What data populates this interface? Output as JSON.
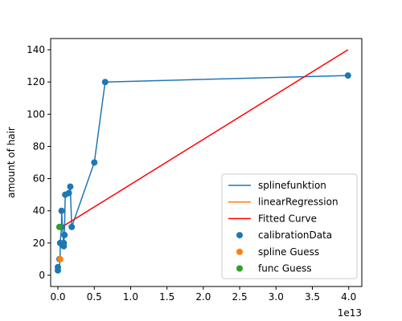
{
  "chart_data": {
    "type": "scatter",
    "ylabel": "amount of hair",
    "x_offset_label": "1e13",
    "x_multiplier": 10000000000000,
    "xlim": [
      -0.1,
      4.18
    ],
    "ylim": [
      -7,
      147
    ],
    "xticks": [
      0.0,
      0.5,
      1.0,
      1.5,
      2.0,
      2.5,
      3.0,
      3.5,
      4.0
    ],
    "xtick_labels": [
      "0.0",
      "0.5",
      "1.0",
      "1.5",
      "2.0",
      "2.5",
      "3.0",
      "3.5",
      "4.0"
    ],
    "yticks": [
      0,
      20,
      40,
      60,
      80,
      100,
      120,
      140
    ],
    "ytick_labels": [
      "0",
      "20",
      "40",
      "60",
      "80",
      "100",
      "120",
      "140"
    ],
    "legend_position": "lower-right",
    "series": [
      {
        "name": "splinefunktion",
        "kind": "line",
        "color": "#1f77b4",
        "points": [
          [
            0.0,
            3
          ],
          [
            0.02,
            5
          ],
          [
            0.03,
            10
          ],
          [
            0.03,
            20
          ],
          [
            0.05,
            30
          ],
          [
            0.05,
            40
          ],
          [
            0.08,
            18
          ],
          [
            0.08,
            20
          ],
          [
            0.09,
            25
          ],
          [
            0.1,
            50
          ],
          [
            0.15,
            51
          ],
          [
            0.17,
            55
          ],
          [
            0.19,
            30
          ],
          [
            0.5,
            70
          ],
          [
            0.65,
            120
          ],
          [
            3.99,
            124
          ]
        ]
      },
      {
        "name": "linearRegression",
        "kind": "line",
        "color": "#ff7f0e",
        "points": [
          [
            0.02,
            29.5
          ],
          [
            0.06,
            30
          ]
        ]
      },
      {
        "name": "Fitted Curve",
        "kind": "line",
        "color": "#ff0000",
        "points": [
          [
            0.02,
            29
          ],
          [
            3.99,
            140
          ]
        ]
      },
      {
        "name": "calibrationData",
        "kind": "scatter",
        "color": "#1f77b4",
        "points": [
          [
            0.0,
            3
          ],
          [
            0.0,
            5
          ],
          [
            0.02,
            10
          ],
          [
            0.03,
            20
          ],
          [
            0.05,
            30
          ],
          [
            0.05,
            40
          ],
          [
            0.08,
            18
          ],
          [
            0.08,
            20
          ],
          [
            0.09,
            25
          ],
          [
            0.1,
            50
          ],
          [
            0.15,
            51
          ],
          [
            0.17,
            55
          ],
          [
            0.19,
            30
          ],
          [
            0.5,
            70
          ],
          [
            0.65,
            120
          ],
          [
            3.99,
            124
          ]
        ]
      },
      {
        "name": "spline Guess",
        "kind": "scatter",
        "color": "#ff7f0e",
        "points": [
          [
            0.03,
            10
          ]
        ]
      },
      {
        "name": "func Guess",
        "kind": "scatter",
        "color": "#2ca02c",
        "points": [
          [
            0.02,
            30
          ]
        ]
      }
    ]
  }
}
